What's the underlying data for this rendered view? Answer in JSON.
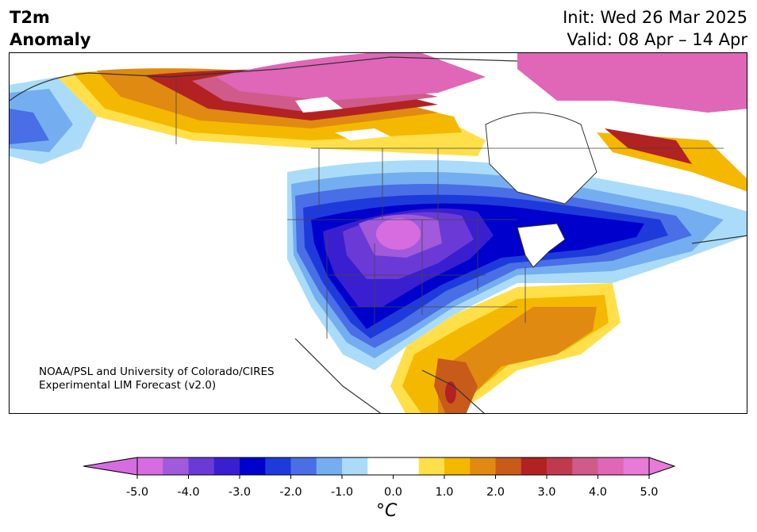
{
  "header": {
    "title_line1": "T2m",
    "title_line2": "Anomaly",
    "init": "Init: Wed 26 Mar 2025",
    "valid": "Valid: 08 Apr – 14 Apr"
  },
  "credit": {
    "line1": "NOAA/PSL and University of Colorado/CIRES",
    "line2": "Experimental LIM Forecast (v2.0)"
  },
  "colorbar": {
    "unit_label": "°C",
    "ticks": [
      "-5.0",
      "-4.0",
      "-3.0",
      "-2.0",
      "-1.0",
      "0.0",
      "1.0",
      "2.0",
      "3.0",
      "4.0",
      "5.0"
    ],
    "min": -5.0,
    "max": 5.0,
    "step": 0.5,
    "colors": [
      "#d66ce0",
      "#a05adb",
      "#6b3ad6",
      "#3a1fd0",
      "#0000cd",
      "#1f3adb",
      "#4a6ee6",
      "#74aef0",
      "#aadcfa",
      "#ffffff",
      "#ffffff",
      "#ffe04a",
      "#f5b800",
      "#e08a12",
      "#c85a1a",
      "#b22222",
      "#c03a4f",
      "#d05a8a",
      "#e066b8",
      "#e87ad8"
    ]
  },
  "map": {
    "region": "North America",
    "colors": {
      "land_outline": "#333333",
      "state_lines": "#444444"
    }
  }
}
